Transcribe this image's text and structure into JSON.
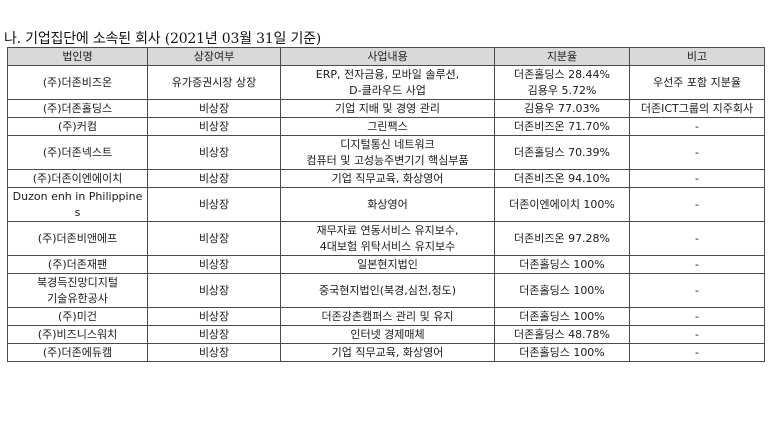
{
  "title": "나. 기업집단에 소속된 회사 (2021년 03월 31일 기준)",
  "columns": [
    "법인명",
    "상장여부",
    "사업내용",
    "지분율",
    "비고"
  ],
  "rows": [
    {
      "name": [
        "(주)더존비즈온"
      ],
      "listing": "유가증권시장 상장",
      "business": [
        "ERP, 전자금융, 모바일 솔루션,",
        "D-클라우드 사업"
      ],
      "stake": [
        "더존홀딩스 28.44%",
        "김용우 5.72%"
      ],
      "note": [
        "우선주 포함 지분율"
      ]
    },
    {
      "name": [
        "(주)더존홀딩스"
      ],
      "listing": "비상장",
      "business": [
        "기업 지배 및 경영 관리"
      ],
      "stake": [
        "김용우 77.03%"
      ],
      "note": [
        "더존ICT그룹의 지주회사"
      ]
    },
    {
      "name": [
        "(주)커컴"
      ],
      "listing": "비상장",
      "business": [
        "그린팩스"
      ],
      "stake": [
        "더존비즈온 71.70%"
      ],
      "note": [
        "-"
      ]
    },
    {
      "name": [
        "(주)더존넥스트"
      ],
      "listing": "비상장",
      "business": [
        "디지털통신 네트워크",
        "컴퓨터 및 고성능주변기기 핵심부품"
      ],
      "stake": [
        "더존홀딩스 70.39%"
      ],
      "note": [
        "-"
      ]
    },
    {
      "name": [
        "(주)더존이엔에이치"
      ],
      "listing": "비상장",
      "business": [
        "기업 직무교육, 화상영어"
      ],
      "stake": [
        "더존비즈온 94.10%"
      ],
      "note": [
        "-"
      ]
    },
    {
      "name": [
        "Duzon enh in Philippine",
        "s"
      ],
      "listing": "비상장",
      "business": [
        "화상영어"
      ],
      "stake": [
        "더존이엔에이치 100%"
      ],
      "note": [
        "-"
      ]
    },
    {
      "name": [
        "(주)더존비앤에프"
      ],
      "listing": "비상장",
      "business": [
        "재무자료 연동서비스 유지보수,",
        "4대보험 위탁서비스 유지보수"
      ],
      "stake": [
        "더존비즈온 97.28%"
      ],
      "note": [
        "-"
      ]
    },
    {
      "name": [
        "(주)더존재팬"
      ],
      "listing": "비상장",
      "business": [
        "일본현지법인"
      ],
      "stake": [
        "더존홀딩스 100%"
      ],
      "note": [
        "-"
      ]
    },
    {
      "name": [
        "북경득진망디지털",
        "기술유한공사"
      ],
      "listing": "비상장",
      "business": [
        "중국현지법인(북경,심천,청도)"
      ],
      "stake": [
        "더존홀딩스 100%"
      ],
      "note": [
        "-"
      ]
    },
    {
      "name": [
        "(주)미건"
      ],
      "listing": "비상장",
      "business": [
        "더존강촌캠퍼스 관리 및 유지"
      ],
      "stake": [
        "더존홀딩스 100%"
      ],
      "note": [
        "-"
      ]
    },
    {
      "name": [
        "(주)비즈니스워치"
      ],
      "listing": "비상장",
      "business": [
        "인터넷 경제매체"
      ],
      "stake": [
        "더존홀딩스 48.78%"
      ],
      "note": [
        "-"
      ]
    },
    {
      "name": [
        "(주)더존에듀캠"
      ],
      "listing": "비상장",
      "business": [
        "기업 직무교육, 화상영어"
      ],
      "stake": [
        "더존홀딩스 100%"
      ],
      "note": [
        "-"
      ]
    }
  ]
}
